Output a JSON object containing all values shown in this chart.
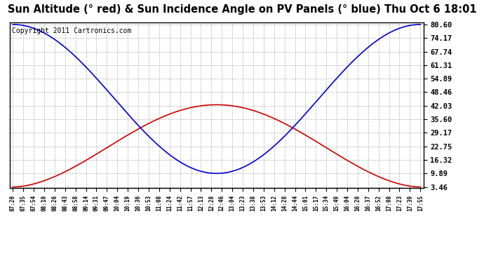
{
  "title": "Sun Altitude (° red) & Sun Incidence Angle on PV Panels (° blue) Thu Oct 6 18:01",
  "copyright_text": "Copyright 2011 Cartronics.com",
  "yticks": [
    3.46,
    9.89,
    16.32,
    22.75,
    29.17,
    35.6,
    42.03,
    48.46,
    54.89,
    61.31,
    67.74,
    74.17,
    80.6
  ],
  "ymin": 3.46,
  "ymax": 80.6,
  "x_labels": [
    "07:20",
    "07:35",
    "07:54",
    "08:10",
    "08:26",
    "08:43",
    "08:58",
    "09:14",
    "09:31",
    "09:47",
    "10:04",
    "10:19",
    "10:36",
    "10:53",
    "11:08",
    "11:24",
    "11:42",
    "11:57",
    "12:13",
    "12:28",
    "12:46",
    "13:04",
    "13:23",
    "13:38",
    "13:53",
    "14:12",
    "14:28",
    "14:44",
    "15:01",
    "15:17",
    "15:34",
    "15:49",
    "16:04",
    "16:20",
    "16:37",
    "16:52",
    "17:08",
    "17:23",
    "17:39",
    "17:55"
  ],
  "bg_color": "#ffffff",
  "plot_bg_color": "#ffffff",
  "grid_color": "#aaaaaa",
  "red_line_color": "#cc0000",
  "blue_line_color": "#0000cc",
  "title_fontsize": 10.5,
  "copyright_fontsize": 7
}
